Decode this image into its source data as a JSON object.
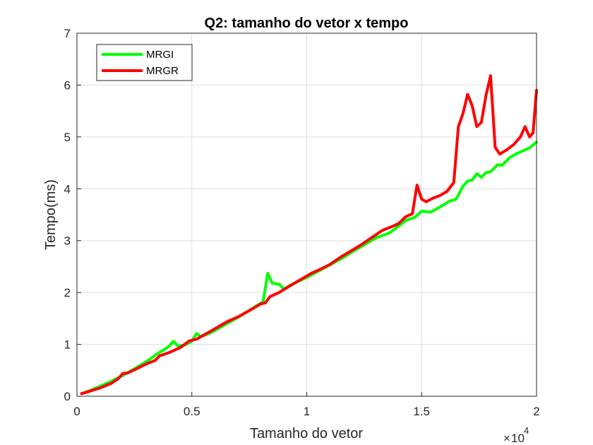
{
  "chart_data": {
    "type": "line",
    "title": "Q2: tamanho do vetor x tempo",
    "xlabel": "Tamanho do vetor",
    "ylabel": "Tempo(ms)",
    "xlim": [
      0,
      20000
    ],
    "ylim": [
      0,
      7
    ],
    "x_ticks": [
      0,
      5000,
      10000,
      15000,
      20000
    ],
    "x_tick_labels": [
      "0",
      "0.5",
      "1",
      "1.5",
      "2"
    ],
    "y_ticks": [
      0,
      1,
      2,
      3,
      4,
      5,
      6,
      7
    ],
    "y_tick_labels": [
      "0",
      "1",
      "2",
      "3",
      "4",
      "5",
      "6",
      "7"
    ],
    "x_multiplier": {
      "base": "10",
      "exponent": "4"
    },
    "grid": true,
    "legend_position": "top-left",
    "series": [
      {
        "name": "MRGI",
        "color": "#00ff00",
        "points": [
          [
            200,
            0.05
          ],
          [
            500,
            0.1
          ],
          [
            1000,
            0.19
          ],
          [
            1500,
            0.29
          ],
          [
            2000,
            0.4
          ],
          [
            2500,
            0.53
          ],
          [
            3000,
            0.66
          ],
          [
            3500,
            0.82
          ],
          [
            3800,
            0.9
          ],
          [
            4000,
            0.96
          ],
          [
            4200,
            1.06
          ],
          [
            4400,
            0.97
          ],
          [
            4700,
            0.99
          ],
          [
            5000,
            1.06
          ],
          [
            5200,
            1.21
          ],
          [
            5400,
            1.15
          ],
          [
            5800,
            1.22
          ],
          [
            6200,
            1.32
          ],
          [
            6600,
            1.42
          ],
          [
            7000,
            1.52
          ],
          [
            7400,
            1.63
          ],
          [
            7800,
            1.74
          ],
          [
            8100,
            1.82
          ],
          [
            8300,
            2.37
          ],
          [
            8500,
            2.18
          ],
          [
            8800,
            2.16
          ],
          [
            9000,
            2.07
          ],
          [
            9400,
            2.17
          ],
          [
            10000,
            2.29
          ],
          [
            10500,
            2.41
          ],
          [
            11000,
            2.53
          ],
          [
            11500,
            2.65
          ],
          [
            12000,
            2.79
          ],
          [
            12500,
            2.92
          ],
          [
            13000,
            3.05
          ],
          [
            13300,
            3.1
          ],
          [
            13600,
            3.15
          ],
          [
            14000,
            3.28
          ],
          [
            14300,
            3.39
          ],
          [
            14700,
            3.45
          ],
          [
            15000,
            3.57
          ],
          [
            15400,
            3.55
          ],
          [
            15800,
            3.65
          ],
          [
            16200,
            3.76
          ],
          [
            16500,
            3.8
          ],
          [
            16800,
            4.05
          ],
          [
            17000,
            4.15
          ],
          [
            17200,
            4.17
          ],
          [
            17400,
            4.29
          ],
          [
            17600,
            4.22
          ],
          [
            17800,
            4.31
          ],
          [
            18000,
            4.33
          ],
          [
            18300,
            4.46
          ],
          [
            18500,
            4.45
          ],
          [
            18800,
            4.59
          ],
          [
            19100,
            4.67
          ],
          [
            19400,
            4.73
          ],
          [
            19700,
            4.79
          ],
          [
            20000,
            4.9
          ]
        ]
      },
      {
        "name": "MRGR",
        "color": "#ff0000",
        "points": [
          [
            200,
            0.05
          ],
          [
            500,
            0.09
          ],
          [
            1000,
            0.16
          ],
          [
            1500,
            0.25
          ],
          [
            1800,
            0.34
          ],
          [
            2000,
            0.44
          ],
          [
            2200,
            0.45
          ],
          [
            2500,
            0.51
          ],
          [
            3000,
            0.62
          ],
          [
            3400,
            0.69
          ],
          [
            3600,
            0.78
          ],
          [
            4000,
            0.84
          ],
          [
            4500,
            0.94
          ],
          [
            4900,
            1.07
          ],
          [
            5200,
            1.1
          ],
          [
            5600,
            1.2
          ],
          [
            6000,
            1.3
          ],
          [
            6500,
            1.43
          ],
          [
            7000,
            1.53
          ],
          [
            7500,
            1.65
          ],
          [
            8000,
            1.78
          ],
          [
            8200,
            1.8
          ],
          [
            8400,
            1.92
          ],
          [
            8800,
            2.0
          ],
          [
            9200,
            2.11
          ],
          [
            9700,
            2.24
          ],
          [
            10200,
            2.37
          ],
          [
            10600,
            2.45
          ],
          [
            11000,
            2.54
          ],
          [
            11500,
            2.69
          ],
          [
            12000,
            2.82
          ],
          [
            12400,
            2.93
          ],
          [
            12900,
            3.08
          ],
          [
            13300,
            3.2
          ],
          [
            13700,
            3.27
          ],
          [
            14000,
            3.33
          ],
          [
            14300,
            3.46
          ],
          [
            14600,
            3.52
          ],
          [
            14800,
            4.07
          ],
          [
            15000,
            3.8
          ],
          [
            15200,
            3.75
          ],
          [
            15500,
            3.82
          ],
          [
            15800,
            3.87
          ],
          [
            16100,
            3.95
          ],
          [
            16400,
            4.12
          ],
          [
            16600,
            5.2
          ],
          [
            16800,
            5.45
          ],
          [
            17000,
            5.82
          ],
          [
            17200,
            5.6
          ],
          [
            17400,
            5.2
          ],
          [
            17600,
            5.28
          ],
          [
            17800,
            5.8
          ],
          [
            18000,
            6.18
          ],
          [
            18200,
            4.8
          ],
          [
            18400,
            4.67
          ],
          [
            18700,
            4.75
          ],
          [
            19000,
            4.85
          ],
          [
            19300,
            5.0
          ],
          [
            19500,
            5.2
          ],
          [
            19700,
            5.0
          ],
          [
            19850,
            5.08
          ],
          [
            20000,
            5.9
          ]
        ]
      }
    ]
  }
}
